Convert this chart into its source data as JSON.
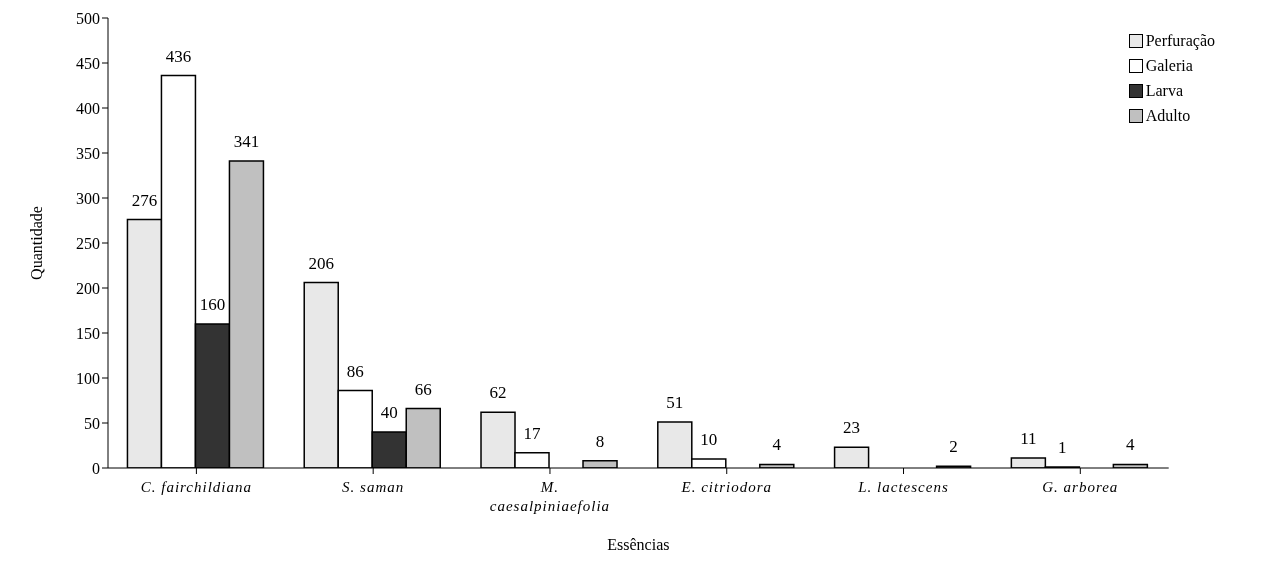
{
  "chart_data": {
    "type": "bar",
    "xlabel": "Essências",
    "ylabel": "Quantidade",
    "categories": [
      "C. fairchildiana",
      "S. saman",
      "M. caesalpiniaefolia",
      "E. citriodora",
      "L. lactescens",
      "G. arborea"
    ],
    "series": [
      {
        "name": "Perfuração",
        "color": "#e8e8e8",
        "values": [
          276,
          206,
          62,
          51,
          23,
          11
        ]
      },
      {
        "name": "Galeria",
        "color": "#ffffff",
        "values": [
          436,
          86,
          17,
          10,
          null,
          1
        ]
      },
      {
        "name": "Larva",
        "color": "#333333",
        "values": [
          160,
          40,
          null,
          null,
          null,
          null
        ]
      },
      {
        "name": "Adulto",
        "color": "#c0c0c0",
        "values": [
          341,
          66,
          8,
          4,
          2,
          4
        ]
      }
    ],
    "ylim": [
      0,
      500
    ],
    "yticks": [
      0,
      50,
      100,
      150,
      200,
      250,
      300,
      350,
      400,
      450,
      500
    ],
    "data_labels": true,
    "legend": "top right",
    "grid": false
  }
}
